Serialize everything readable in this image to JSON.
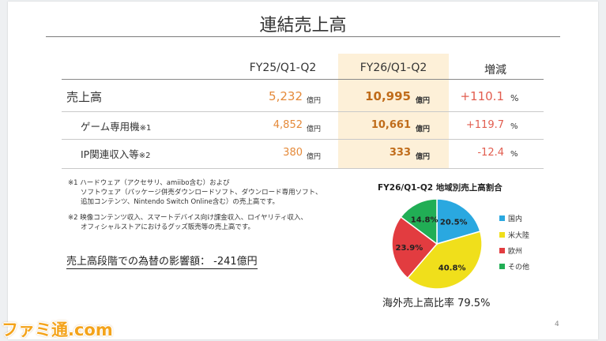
{
  "title": "連結売上高",
  "table": {
    "headers": [
      "FY25/Q1-Q2",
      "FY26/Q1-Q2",
      "増減"
    ],
    "rows": [
      {
        "label": "売上高",
        "prev": "5,232",
        "prev_unit": "億円",
        "curr": "10,995",
        "curr_unit": "億円",
        "change": "+110.1",
        "change_unit": "%"
      },
      {
        "label": "ゲーム専用機",
        "label_note": "※1",
        "prev": "4,852",
        "prev_unit": "億円",
        "curr": "10,661",
        "curr_unit": "億円",
        "change": "+119.7",
        "change_unit": "%"
      },
      {
        "label": "IP関連収入等",
        "label_note": "※2",
        "prev": "380",
        "prev_unit": "億円",
        "curr": "333",
        "curr_unit": "億円",
        "change": "-12.4",
        "change_unit": "%"
      }
    ]
  },
  "notes": {
    "note1": [
      "※1 ハードウェア（アクセサリ、amiibo含む）および",
      "ソフトウェア（パッケージ併売ダウンロードソフト、ダウンロード専用ソフト、",
      "追加コンテンツ、Nintendo Switch Online含む）の売上高です。"
    ],
    "note2": [
      "※2 映像コンテンツ収入、スマートデバイス向け課金収入、ロイヤリティ収入、",
      "オフィシャルストアにおけるグッズ販売等の売上高です。"
    ]
  },
  "fx_impact": "売上高段階での為替の影響額： -241億円",
  "chart_data": {
    "type": "pie",
    "title": "FY26/Q1-Q2 地域別売上高割合",
    "categories": [
      "国内",
      "米大陸",
      "欧州",
      "その他"
    ],
    "values": [
      20.5,
      40.8,
      23.9,
      14.8
    ],
    "labels": [
      "20.5%",
      "40.8%",
      "23.9%",
      "14.8%"
    ],
    "colors": [
      "#2aa8e0",
      "#f0df1b",
      "#e23c40",
      "#21ae55"
    ],
    "legend_position": "right"
  },
  "overseas_ratio": "海外売上高比率 79.5%",
  "page_number": "4",
  "watermark": "ファミ通.com"
}
